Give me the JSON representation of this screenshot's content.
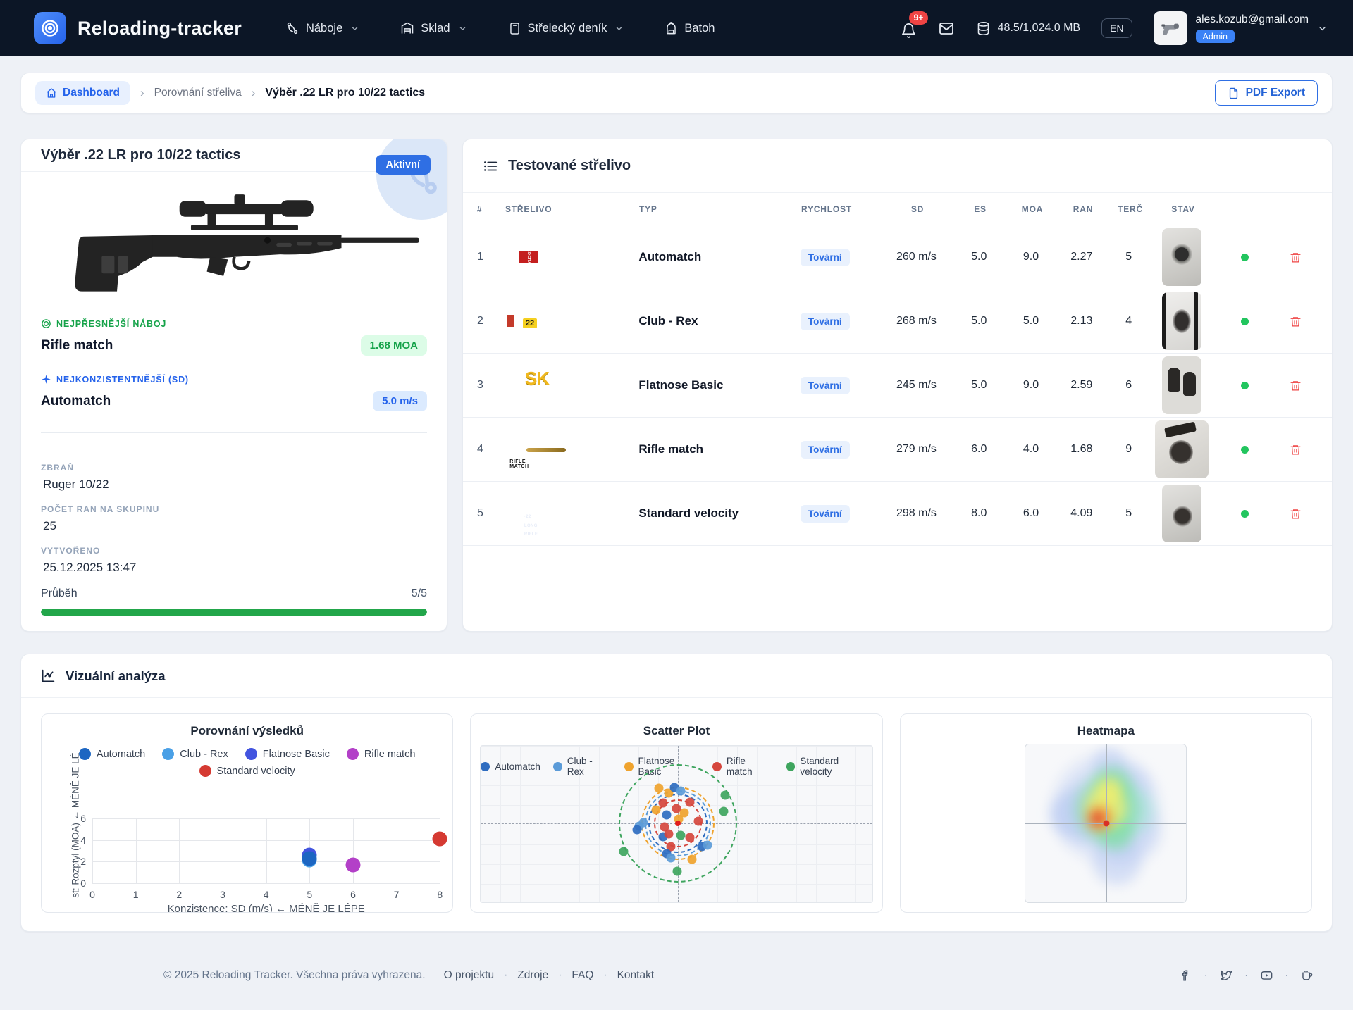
{
  "navbar": {
    "brand": "Reloading-tracker",
    "items": [
      {
        "icon": "naboje",
        "label": "Náboje",
        "dropdown": true
      },
      {
        "icon": "sklad",
        "label": "Sklad",
        "dropdown": true
      },
      {
        "icon": "denik",
        "label": "Střelecký deník",
        "dropdown": true
      },
      {
        "icon": "batoh",
        "label": "Batoh",
        "dropdown": false
      }
    ],
    "notification_count": "9+",
    "storage": "48.5/1,024.0 MB",
    "language": "EN",
    "user_email": "ales.kozub@gmail.com",
    "user_role": "Admin"
  },
  "breadcrumb": {
    "separator": "›",
    "home": "Dashboard",
    "middle": "Porovnání střeliva",
    "current": "Výběr .22 LR pro 10/22 tactics",
    "pdf_export": "PDF Export"
  },
  "selection_card": {
    "title": "Výběr .22 LR pro 10/22 tactics",
    "status_badge": "Aktivní",
    "best_accuracy_label": "NEJPŘESNĚJŠÍ NÁBOJ",
    "best_accuracy_name": "Rifle match",
    "best_accuracy_value": "1.68 MOA",
    "best_sd_label": "NEJKONZISTENTNĚJŠÍ (SD)",
    "best_sd_name": "Automatch",
    "best_sd_value": "5.0 m/s",
    "weapon_label": "ZBRAŇ",
    "weapon": "Ruger 10/22",
    "shots_label": "POČET RAN NA SKUPINU",
    "shots": "25",
    "created_label": "VYTVOŘENO",
    "created": "25.12.2025 13:47",
    "progress_label": "Průběh",
    "progress_value": "5/5",
    "progress_pct": 100
  },
  "ammo_table": {
    "title": "Testované střelivo",
    "columns": [
      "#",
      "STŘELIVO",
      "TYP",
      "RYCHLOST",
      "SD",
      "ES",
      "MOA",
      "RAN",
      "TERČ",
      "STAV"
    ],
    "rows": [
      {
        "num": "1",
        "name": "Automatch",
        "type": "Tovární",
        "speed": "260 m/s",
        "sd": "5.0",
        "es": "9.0",
        "moa": "2.27",
        "shots": "5",
        "photo": {
          "variant": "f1",
          "label": "FEDERAL"
        },
        "target_variant": "t1"
      },
      {
        "num": "2",
        "name": "Club - Rex",
        "type": "Tovární",
        "speed": "268 m/s",
        "sd": "5.0",
        "es": "5.0",
        "moa": "2.13",
        "shots": "4",
        "photo": {
          "variant": "f2",
          "label": "22"
        },
        "target_variant": "t2"
      },
      {
        "num": "3",
        "name": "Flatnose Basic",
        "type": "Tovární",
        "speed": "245 m/s",
        "sd": "5.0",
        "es": "9.0",
        "moa": "2.59",
        "shots": "6",
        "photo": {
          "variant": "f3",
          "label": "SK"
        },
        "target_variant": "t3"
      },
      {
        "num": "4",
        "name": "Rifle match",
        "type": "Tovární",
        "speed": "279 m/s",
        "sd": "6.0",
        "es": "4.0",
        "moa": "1.68",
        "shots": "9",
        "photo": {
          "variant": "f4",
          "label": "RIFLE MATCH"
        },
        "target_variant": "t4"
      },
      {
        "num": "5",
        "name": "Standard velocity",
        "type": "Tovární",
        "speed": "298 m/s",
        "sd": "8.0",
        "es": "6.0",
        "moa": "4.09",
        "shots": "5",
        "photo": {
          "variant": "f5",
          "label": "·22 LONG RIFLE"
        },
        "target_variant": "t5"
      }
    ]
  },
  "analysis": {
    "title": "Vizuální analýza"
  },
  "chart_data": [
    {
      "type": "scatter",
      "title": "Porovnání výsledků",
      "xlabel": "Konzistence: SD (m/s) ← MÉNĚ JE LÉPE",
      "ylabel": "st: Rozptyl (MOA) ← MÉNĚ JE LÉ",
      "xlim": [
        0,
        8
      ],
      "ylim": [
        0,
        6
      ],
      "xticks": [
        0,
        1,
        2,
        3,
        4,
        5,
        6,
        7,
        8
      ],
      "yticks": [
        0,
        2,
        4,
        6
      ],
      "grid": true,
      "legend_position": "top",
      "series": [
        {
          "name": "Automatch",
          "color": "#1d66c2",
          "points": [
            [
              5.0,
              2.27
            ]
          ]
        },
        {
          "name": "Club - Rex",
          "color": "#4aa0e6",
          "points": [
            [
              5.0,
              2.13
            ]
          ]
        },
        {
          "name": "Flatnose Basic",
          "color": "#4254df",
          "points": [
            [
              5.0,
              2.59
            ]
          ]
        },
        {
          "name": "Rifle match",
          "color": "#b340c8",
          "points": [
            [
              6.0,
              1.68
            ]
          ]
        },
        {
          "name": "Standard velocity",
          "color": "#d53a32",
          "points": [
            [
              8.0,
              4.09
            ]
          ]
        }
      ]
    },
    {
      "type": "scatter",
      "title": "Scatter Plot",
      "legend_position": "top-inside",
      "grid": true,
      "series": [
        {
          "key": "a",
          "name": "Automatch",
          "color": "#2e6cc0"
        },
        {
          "key": "c",
          "name": "Club - Rex",
          "color": "#5b9bd8"
        },
        {
          "key": "f",
          "name": "Flatnose Basic",
          "color": "#efa32e"
        },
        {
          "key": "r",
          "name": "Rifle match",
          "color": "#d5463d"
        },
        {
          "key": "s",
          "name": "Standard velocity",
          "color": "#3ea55e"
        }
      ],
      "crosshair": {
        "x_pct": 50.3,
        "y_pct": 49.5
      },
      "rings": [
        {
          "color": "#3ea55e",
          "radius_px": 84
        },
        {
          "color": "#efa32e",
          "radius_px": 52
        },
        {
          "color": "#5b9bd8",
          "radius_px": 47
        },
        {
          "color": "#2e6cc0",
          "radius_px": 42
        },
        {
          "color": "#d5463d",
          "radius_px": 34
        }
      ],
      "center_dot_color": "#e11d1d",
      "points_pct": [
        [
          45.5,
          27,
          "f"
        ],
        [
          48,
          30,
          "f"
        ],
        [
          49.5,
          26.5,
          "a"
        ],
        [
          51,
          29,
          "c"
        ],
        [
          46.5,
          36.5,
          "r"
        ],
        [
          53.5,
          36,
          "r"
        ],
        [
          50,
          40,
          "r"
        ],
        [
          52,
          43,
          "f"
        ],
        [
          47.5,
          44,
          "a"
        ],
        [
          44.8,
          41,
          "f"
        ],
        [
          50.5,
          47,
          "f"
        ],
        [
          41.5,
          49,
          "c"
        ],
        [
          40.5,
          51.5,
          "c"
        ],
        [
          40,
          53.5,
          "a"
        ],
        [
          47,
          52,
          "r"
        ],
        [
          46.5,
          58,
          "a"
        ],
        [
          48,
          56.5,
          "r"
        ],
        [
          51,
          57,
          "s"
        ],
        [
          53.5,
          58.5,
          "r"
        ],
        [
          55.5,
          48,
          "r"
        ],
        [
          48.5,
          64.5,
          "r"
        ],
        [
          47.5,
          69,
          "a"
        ],
        [
          48.5,
          71.5,
          "c"
        ],
        [
          54,
          72.5,
          "f"
        ],
        [
          56.5,
          64.5,
          "a"
        ],
        [
          58,
          63.5,
          "c"
        ],
        [
          62.5,
          31.5,
          "s"
        ],
        [
          62,
          42,
          "s"
        ],
        [
          36.5,
          67.5,
          "s"
        ],
        [
          50.2,
          80,
          "s"
        ]
      ]
    },
    {
      "type": "heatmap",
      "title": "Heatmapa",
      "center_dot_color": "#d93025",
      "crosshair": {
        "x_pct": 50.4,
        "y_pct": 50.2
      },
      "blobs": [
        [
          50,
          40,
          170,
          "#bdcdf2",
          0.75
        ],
        [
          36,
          44,
          100,
          "#bdcdf2",
          0.7
        ],
        [
          61,
          30,
          95,
          "#bdcdf2",
          0.7
        ],
        [
          64,
          54,
          110,
          "#bdcdf2",
          0.7
        ],
        [
          57,
          73,
          85,
          "#bdcdf2",
          0.7
        ],
        [
          28,
          44,
          70,
          "#bdcdf2",
          0.7
        ],
        [
          52,
          13,
          60,
          "#bdcdf2",
          0.65
        ],
        [
          66,
          42,
          80,
          "#a9e8d8",
          0.6
        ],
        [
          51,
          41,
          110,
          "#7ddfa2",
          0.8
        ],
        [
          54,
          27,
          70,
          "#7ddfa2",
          0.75
        ],
        [
          56,
          56,
          62,
          "#7ddfa2",
          0.7
        ],
        [
          50,
          40,
          72,
          "#f3ee6e",
          0.9
        ],
        [
          52,
          29,
          46,
          "#f3ee6e",
          0.85
        ],
        [
          46,
          47,
          46,
          "#f09a3e",
          0.95
        ],
        [
          45,
          47,
          22,
          "#e23d2e",
          0.95
        ]
      ]
    }
  ],
  "footer": {
    "copyright": "© 2025 Reloading Tracker. Všechna práva vyhrazena.",
    "separator": "·",
    "links": [
      "O projektu",
      "Zdroje",
      "FAQ",
      "Kontakt"
    ],
    "social": [
      "facebook",
      "twitter",
      "youtube",
      "coffee"
    ]
  }
}
